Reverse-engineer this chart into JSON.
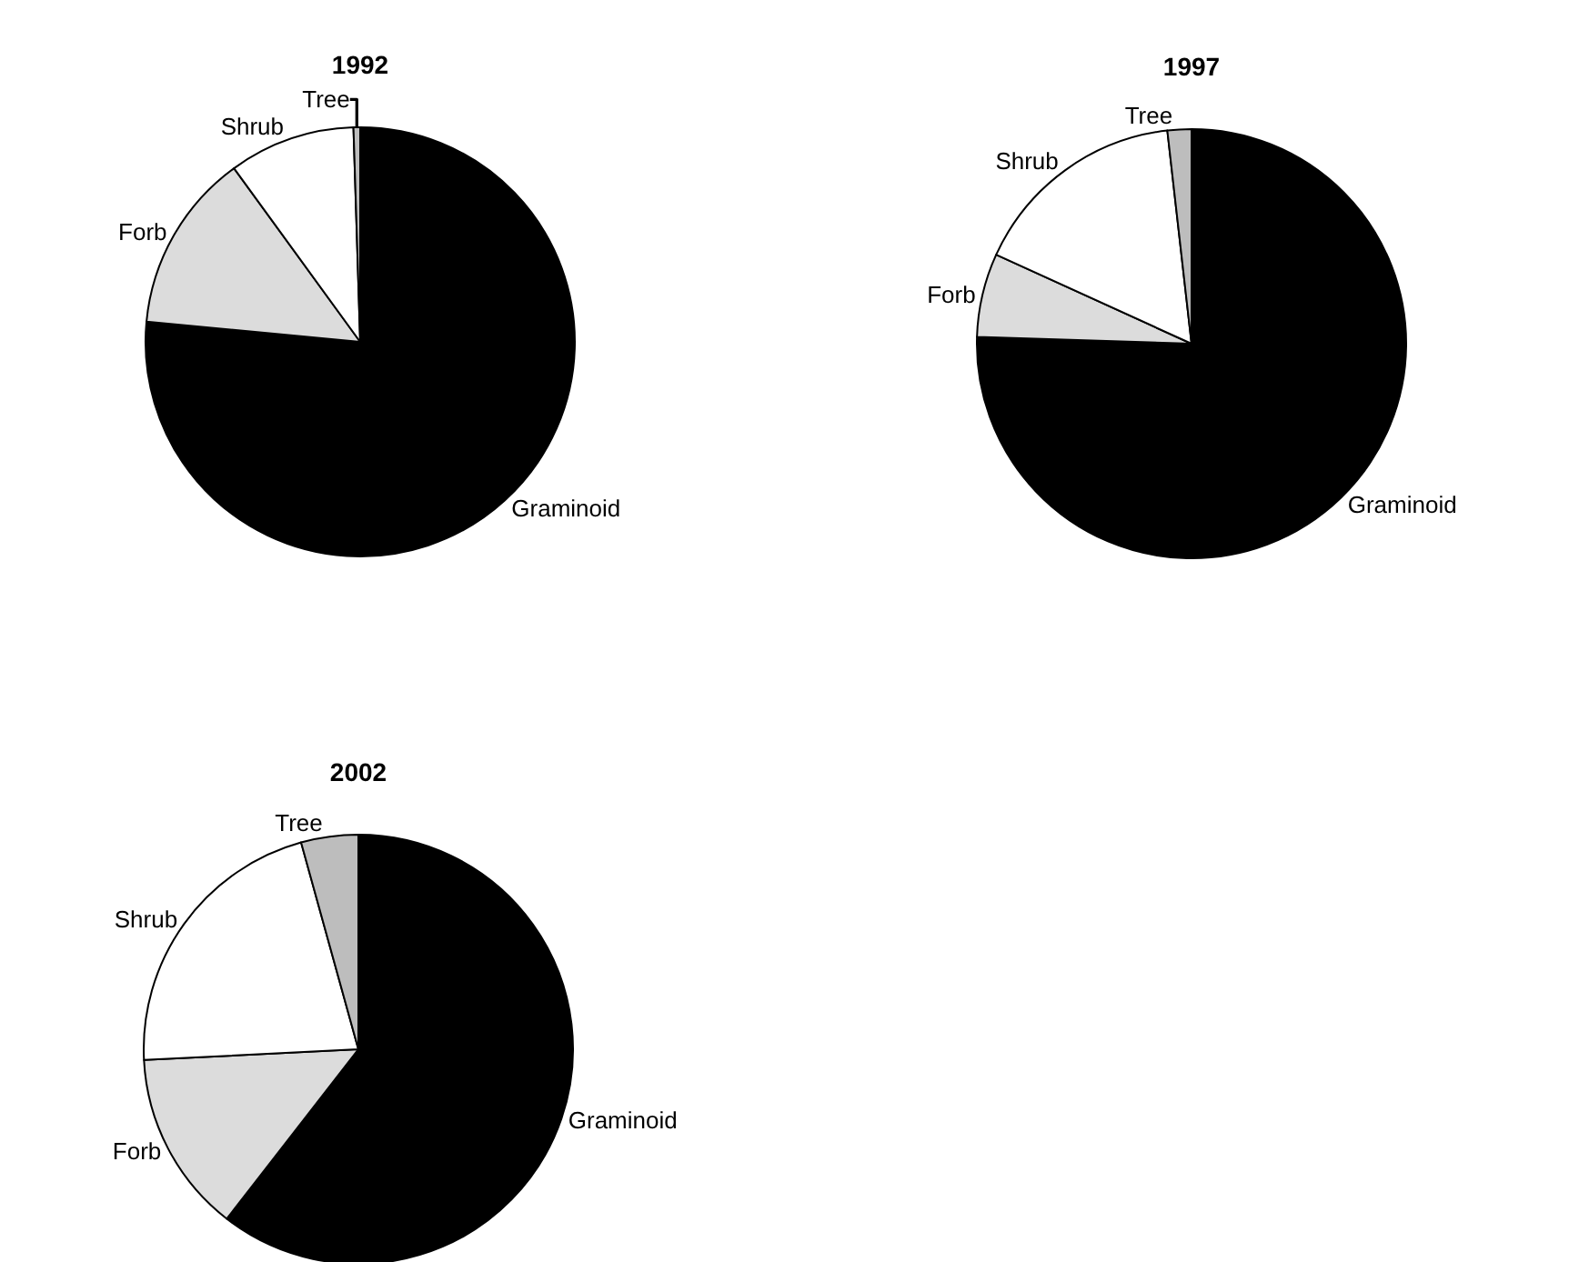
{
  "chart_data": [
    {
      "type": "pie",
      "title": "1992",
      "categories": [
        "Graminoid",
        "Forb",
        "Shrub",
        "Tree"
      ],
      "values": [
        76.5,
        13.5,
        9.5,
        0.5
      ],
      "colors": [
        "#000000",
        "#dcdcdc",
        "#ffffff",
        "#bdbdbd"
      ]
    },
    {
      "type": "pie",
      "title": "1997",
      "categories": [
        "Graminoid",
        "Forb",
        "Shrub",
        "Tree"
      ],
      "values": [
        75.5,
        6.3,
        16.4,
        1.8
      ],
      "colors": [
        "#000000",
        "#dcdcdc",
        "#ffffff",
        "#bdbdbd"
      ]
    },
    {
      "type": "pie",
      "title": "2002",
      "categories": [
        "Graminoid",
        "Forb",
        "Shrub",
        "Tree"
      ],
      "values": [
        60.5,
        13.7,
        21.5,
        4.3
      ],
      "colors": [
        "#000000",
        "#dcdcdc",
        "#ffffff",
        "#bdbdbd"
      ]
    }
  ]
}
